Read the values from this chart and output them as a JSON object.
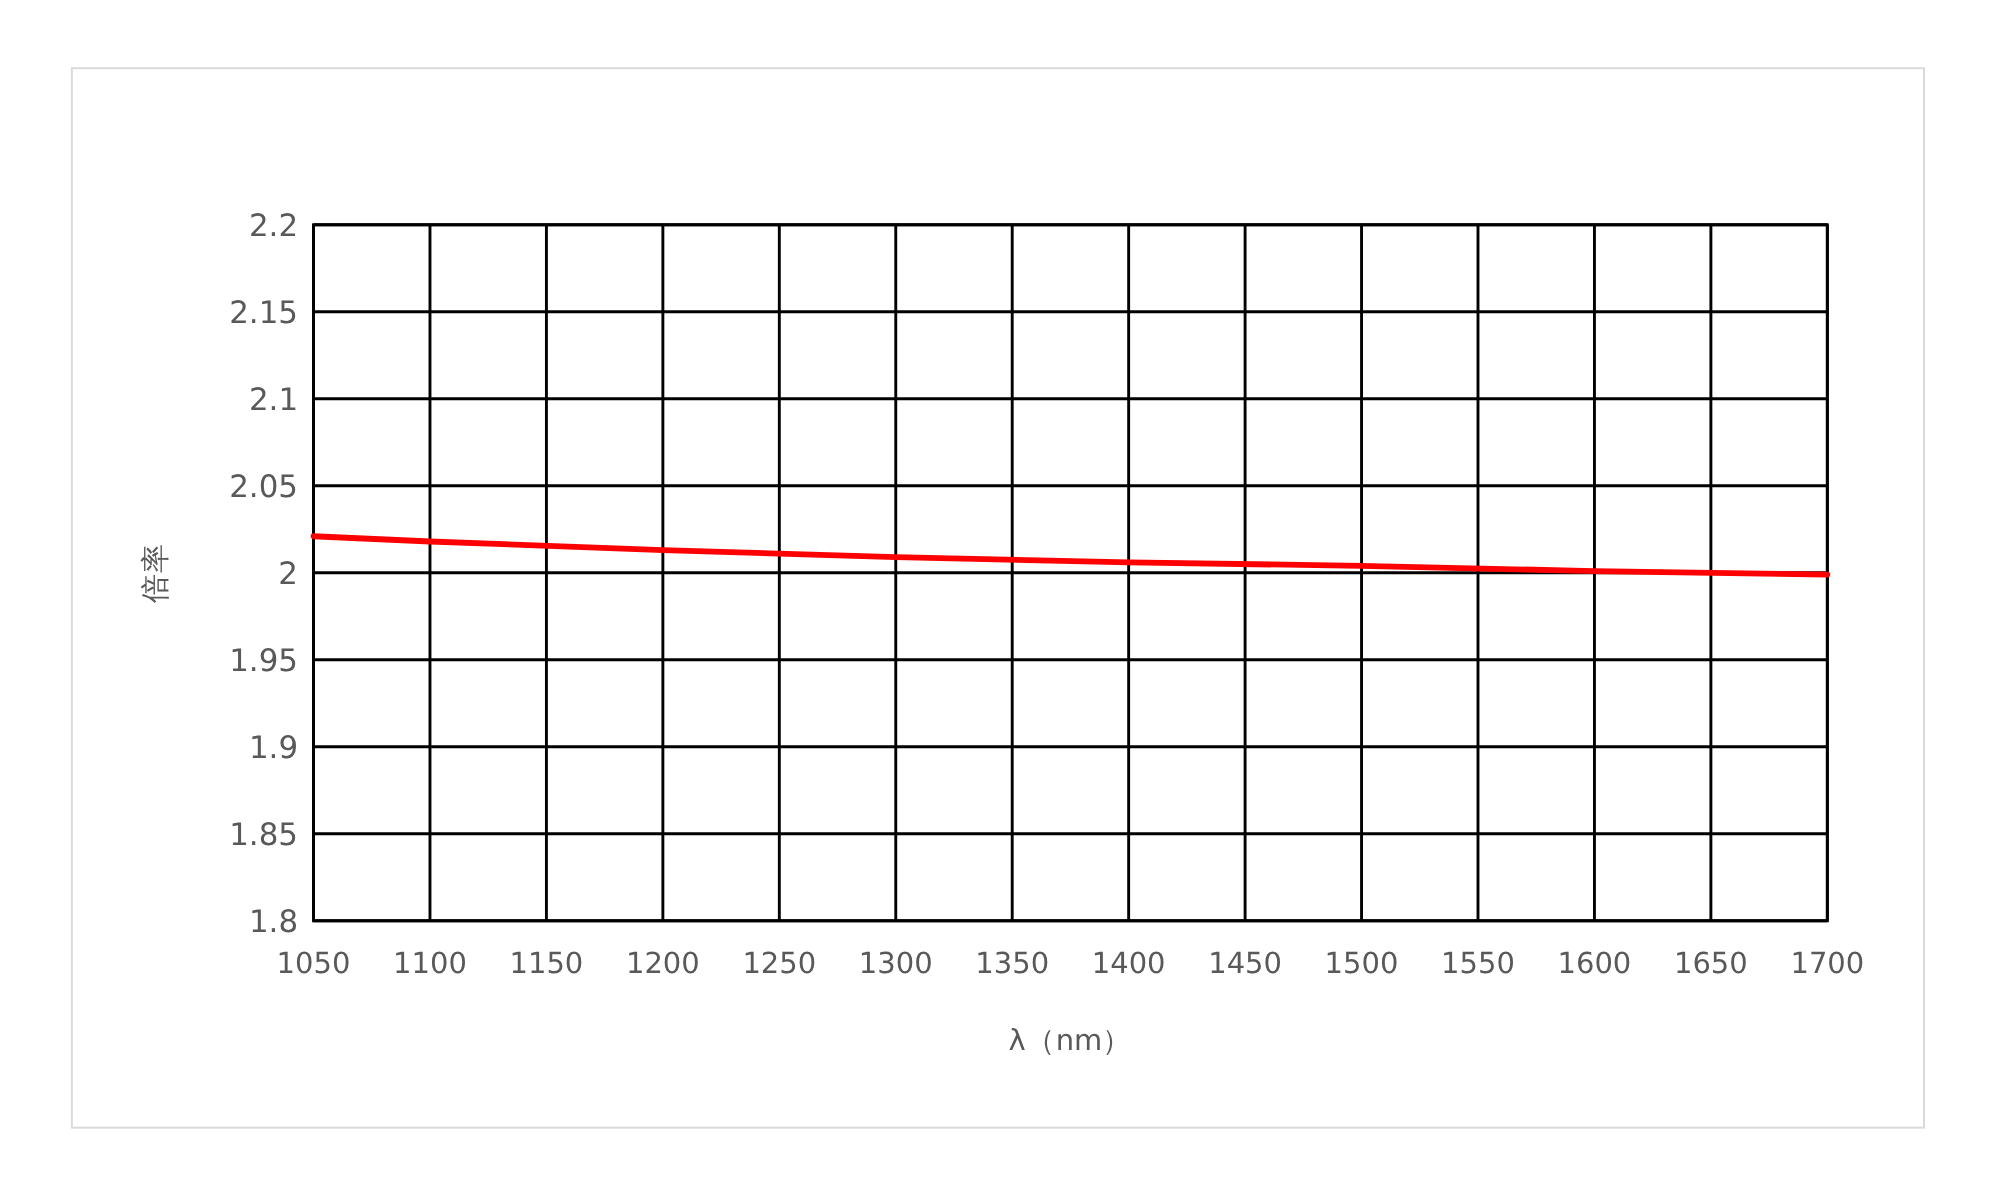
{
  "chart_data": {
    "type": "line",
    "xlabel": "λ（nm）",
    "ylabel": "倍率",
    "x": [
      1050,
      1100,
      1200,
      1300,
      1400,
      1500,
      1600,
      1700
    ],
    "series": [
      {
        "color": "#ff0000",
        "values": [
          2.021,
          2.018,
          2.013,
          2.009,
          2.006,
          2.004,
          2.001,
          1.999
        ]
      }
    ],
    "xlim": [
      1050,
      1700
    ],
    "xticks": [
      1050,
      1100,
      1150,
      1200,
      1250,
      1300,
      1350,
      1400,
      1450,
      1500,
      1550,
      1600,
      1650,
      1700
    ],
    "ylim": [
      1.8,
      2.2
    ],
    "yticks": [
      1.8,
      1.85,
      1.9,
      1.95,
      2,
      2.05,
      2.1,
      2.15,
      2.2
    ],
    "grid": true,
    "marker": "none",
    "line_style": "solid"
  }
}
